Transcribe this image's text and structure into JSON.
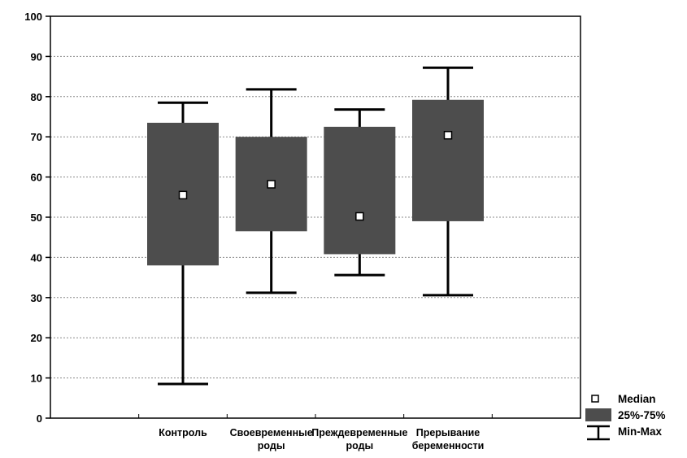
{
  "chart_data": {
    "type": "boxplot",
    "ylim": [
      0,
      100
    ],
    "yticks": [
      0,
      10,
      20,
      30,
      40,
      50,
      60,
      70,
      80,
      90,
      100
    ],
    "grid": true,
    "categories": [
      [
        "Контроль"
      ],
      [
        "Своевременные",
        "роды"
      ],
      [
        "Преждевременные",
        "роды"
      ],
      [
        "Прерывание",
        "беременности"
      ]
    ],
    "boxes": [
      {
        "min": 8.5,
        "q1": 38,
        "median": 55.5,
        "q3": 73.5,
        "max": 78.5
      },
      {
        "min": 31.2,
        "q1": 46.5,
        "median": 58.2,
        "q3": 70,
        "max": 81.8
      },
      {
        "min": 35.6,
        "q1": 40.8,
        "median": 50.2,
        "q3": 72.5,
        "max": 76.8
      },
      {
        "min": 30.6,
        "q1": 49,
        "median": 70.4,
        "q3": 79.2,
        "max": 87.2
      }
    ],
    "legend": {
      "position": "bottom-right",
      "median": "Median",
      "box": "25%-75%",
      "whisker": "Min-Max"
    },
    "box_color": "#4d4d4d"
  }
}
